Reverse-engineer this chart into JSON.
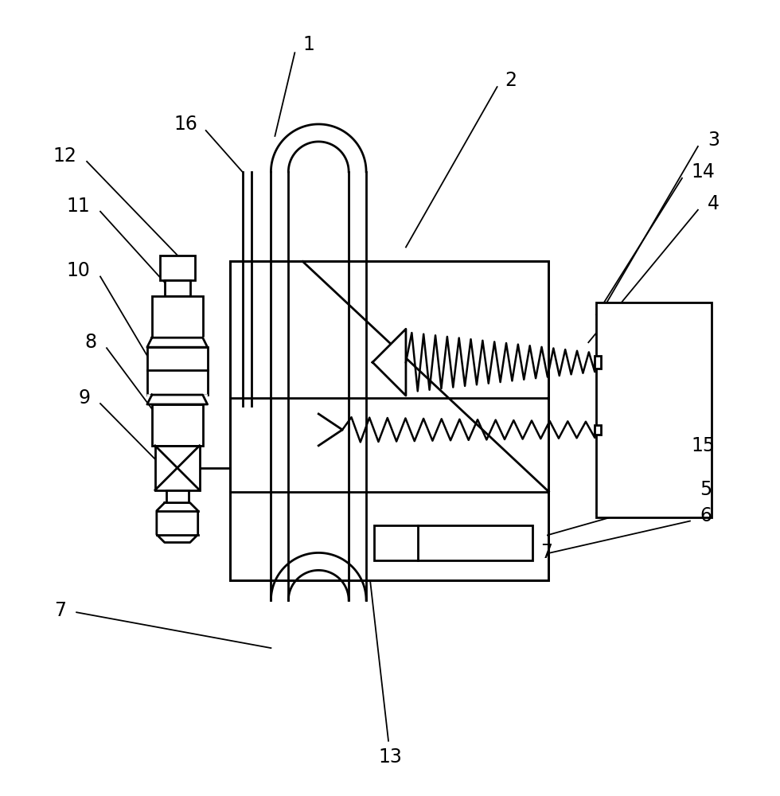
{
  "bg_color": "#ffffff",
  "line_color": "#000000",
  "label_color": "#000000",
  "fig_width": 9.8,
  "fig_height": 10.0
}
